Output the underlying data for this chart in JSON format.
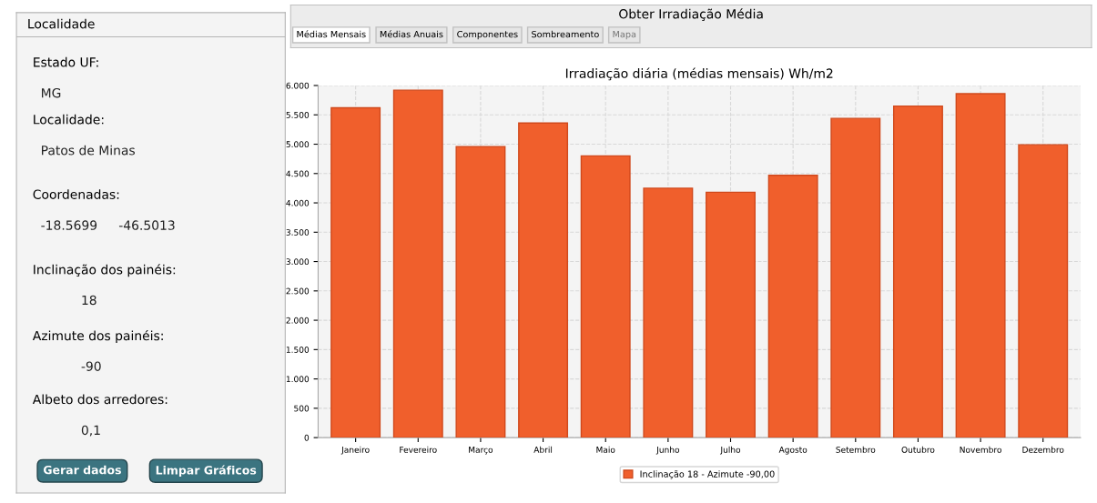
{
  "chart_data": [
    {
      "type": "other",
      "title": "Localidade",
      "annotations": [
        "Estado UF:",
        "MG",
        "Localidade:",
        "Patos de Minas",
        "Coordenadas:",
        "-18.5699",
        "-46.5013",
        "Inclinação dos painéis:",
        "18",
        "Azimute dos painéis:",
        "-90",
        "Albeto dos arredores:",
        "0,1",
        "Gerar dados",
        "Limpar Gráficos"
      ]
    },
    {
      "type": "other",
      "title": "Obter Irradiação Média",
      "annotations": [
        "Médias Mensais",
        "Médias Anuais",
        "Componentes",
        "Sombreamento",
        "Mapa"
      ]
    },
    {
      "type": "bar",
      "title": "Irradiação diária (médias mensais) Wh/m2",
      "categories": [
        "Janeiro",
        "Fevereiro",
        "Março",
        "Abril",
        "Maio",
        "Junho",
        "Julho",
        "Agosto",
        "Setembro",
        "Outubro",
        "Novembro",
        "Dezembro"
      ],
      "series": [
        {
          "name": "Inclinação 18 - Azimute -90,00",
          "color": "#f05f2c",
          "values": [
            5620,
            5920,
            4960,
            5360,
            4800,
            4250,
            4180,
            4470,
            5440,
            5650,
            5860,
            4990
          ]
        }
      ],
      "ylim": [
        0,
        6000
      ],
      "yticks": [
        0,
        {
          "value": 500,
          "label": "500"
        },
        {
          "value": 1000,
          "label": "1.000"
        },
        {
          "value": 1500,
          "label": "1.500"
        },
        {
          "value": 2000,
          "label": "2.000"
        },
        {
          "value": 2500,
          "label": "2.500"
        },
        {
          "value": 3000,
          "label": "3.000"
        },
        {
          "value": 3500,
          "label": "3.500"
        },
        {
          "value": 4000,
          "label": "4.000"
        },
        {
          "value": 4500,
          "label": "4.500"
        },
        {
          "value": 5000,
          "label": "5.000"
        },
        {
          "value": 5500,
          "label": "5.500"
        },
        {
          "value": 6000,
          "label": "6.000"
        }
      ],
      "grid": true,
      "legend": "bottom"
    }
  ]
}
